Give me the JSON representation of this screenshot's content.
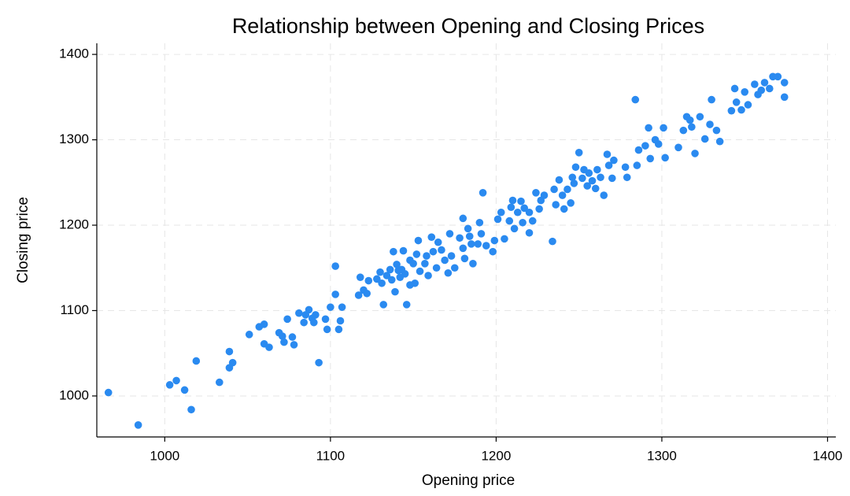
{
  "chart_data": {
    "type": "scatter",
    "title": "Relationship between Opening and Closing Prices",
    "x_label": "Opening price",
    "y_label": "Closing price",
    "color": "#2a8af0",
    "grid": true,
    "xlim": [
      959,
      1405
    ],
    "ylim": [
      952,
      1413
    ],
    "xticks": [
      1000,
      1100,
      1200,
      1300,
      1400
    ],
    "yticks": [
      1000,
      1100,
      1200,
      1300,
      1400
    ],
    "x": [
      966,
      984,
      1003,
      1007,
      1012,
      1016,
      1019,
      1033,
      1039,
      1039,
      1041,
      1051,
      1057,
      1060,
      1060,
      1063,
      1069,
      1071,
      1072,
      1074,
      1077,
      1078,
      1081,
      1084,
      1085,
      1087,
      1089,
      1090,
      1091,
      1093,
      1097,
      1098,
      1100,
      1103,
      1103,
      1105,
      1106,
      1107,
      1117,
      1118,
      1120,
      1122,
      1123,
      1128,
      1130,
      1131,
      1132,
      1134,
      1136,
      1137,
      1138,
      1139,
      1140,
      1141,
      1142,
      1143,
      1144,
      1145,
      1146,
      1148,
      1148,
      1150,
      1151,
      1152,
      1153,
      1154,
      1157,
      1158,
      1159,
      1161,
      1162,
      1164,
      1165,
      1167,
      1169,
      1171,
      1172,
      1173,
      1175,
      1178,
      1180,
      1180,
      1181,
      1183,
      1184,
      1185,
      1186,
      1189,
      1190,
      1191,
      1192,
      1194,
      1198,
      1199,
      1201,
      1203,
      1205,
      1208,
      1209,
      1210,
      1211,
      1213,
      1215,
      1216,
      1217,
      1220,
      1220,
      1222,
      1224,
      1226,
      1227,
      1229,
      1234,
      1235,
      1236,
      1238,
      1240,
      1241,
      1243,
      1245,
      1246,
      1247,
      1248,
      1250,
      1252,
      1253,
      1255,
      1256,
      1258,
      1260,
      1261,
      1263,
      1265,
      1267,
      1268,
      1270,
      1271,
      1278,
      1279,
      1284,
      1285,
      1286,
      1290,
      1292,
      1293,
      1296,
      1298,
      1301,
      1302,
      1310,
      1313,
      1315,
      1317,
      1318,
      1320,
      1323,
      1326,
      1329,
      1330,
      1333,
      1335,
      1342,
      1344,
      1345,
      1348,
      1350,
      1352,
      1356,
      1358,
      1360,
      1362,
      1365,
      1367,
      1370,
      1374,
      1374
    ],
    "values": [
      1004,
      966,
      1013,
      1018,
      1007,
      984,
      1041,
      1016,
      1052,
      1033,
      1039,
      1072,
      1081,
      1084,
      1061,
      1057,
      1074,
      1070,
      1063,
      1090,
      1069,
      1060,
      1097,
      1086,
      1095,
      1101,
      1091,
      1086,
      1095,
      1039,
      1090,
      1078,
      1104,
      1119,
      1152,
      1078,
      1088,
      1104,
      1118,
      1139,
      1124,
      1120,
      1135,
      1137,
      1145,
      1132,
      1107,
      1141,
      1148,
      1136,
      1169,
      1122,
      1154,
      1147,
      1139,
      1148,
      1170,
      1143,
      1107,
      1130,
      1159,
      1155,
      1132,
      1166,
      1182,
      1146,
      1155,
      1164,
      1141,
      1186,
      1169,
      1150,
      1180,
      1171,
      1159,
      1144,
      1190,
      1164,
      1150,
      1185,
      1173,
      1208,
      1161,
      1196,
      1187,
      1178,
      1155,
      1178,
      1203,
      1190,
      1238,
      1176,
      1169,
      1182,
      1207,
      1215,
      1184,
      1205,
      1221,
      1229,
      1196,
      1215,
      1228,
      1203,
      1220,
      1191,
      1215,
      1205,
      1238,
      1219,
      1229,
      1235,
      1181,
      1242,
      1224,
      1253,
      1235,
      1219,
      1242,
      1226,
      1256,
      1249,
      1268,
      1285,
      1255,
      1265,
      1246,
      1261,
      1252,
      1243,
      1265,
      1256,
      1235,
      1283,
      1270,
      1255,
      1276,
      1268,
      1256,
      1347,
      1270,
      1288,
      1293,
      1314,
      1278,
      1300,
      1295,
      1314,
      1279,
      1291,
      1311,
      1327,
      1323,
      1315,
      1284,
      1327,
      1301,
      1318,
      1347,
      1311,
      1298,
      1334,
      1360,
      1344,
      1335,
      1356,
      1341,
      1365,
      1353,
      1358,
      1367,
      1360,
      1374,
      1374,
      1367,
      1350
    ]
  }
}
